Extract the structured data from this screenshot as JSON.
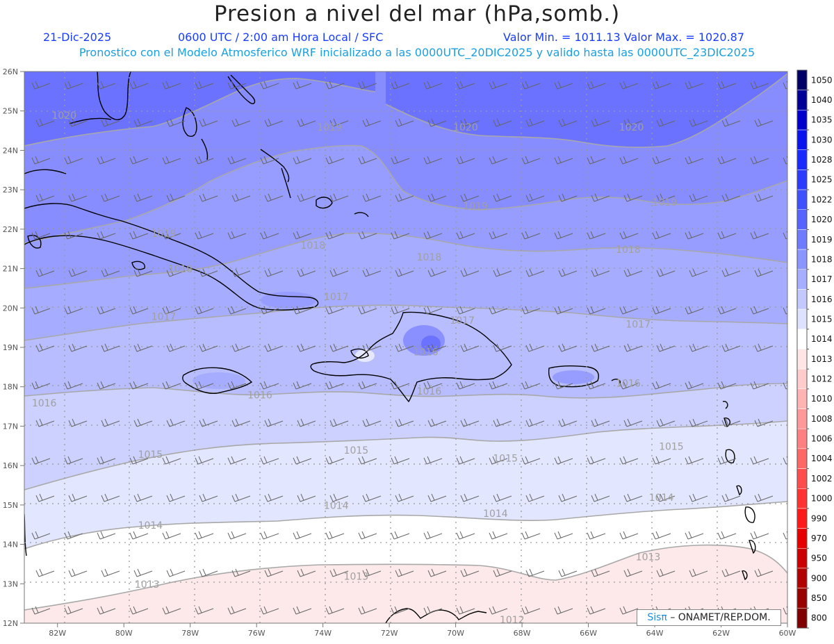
{
  "header": {
    "title": "Presion a nivel del mar (hPa,somb.)",
    "date": "21-Dic-2025",
    "time_info": "0600 UTC / 2:00 am Hora Local / SFC",
    "min_max": "Valor Min. = 1011.13  Valor Max. = 1020.87",
    "model_info": "Pronostico con el Modelo Atmosferico WRF inicializado a las 0000UTC_20DIC2025 y valido hasta las  0000UTC_23DIC2025"
  },
  "map": {
    "lat_labels": [
      "26N",
      "25N",
      "24N",
      "23N",
      "22N",
      "21N",
      "20N",
      "19N",
      "18N",
      "17N",
      "16N",
      "15N",
      "14N",
      "13N",
      "12N"
    ],
    "lon_labels": [
      "82W",
      "80W",
      "78W",
      "76W",
      "74W",
      "72W",
      "70W",
      "68W",
      "66W",
      "64W",
      "62W",
      "60W"
    ],
    "contour_labels": [
      {
        "text": "1020",
        "lon": -81.8,
        "lat": 24.8
      },
      {
        "text": "1019",
        "lon": -73.8,
        "lat": 24.5
      },
      {
        "text": "1020",
        "lon": -69.7,
        "lat": 24.5
      },
      {
        "text": "1020",
        "lon": -64.7,
        "lat": 24.5
      },
      {
        "text": "1019",
        "lon": -69.4,
        "lat": 22.5
      },
      {
        "text": "1019",
        "lon": -63.7,
        "lat": 22.6
      },
      {
        "text": "1019",
        "lon": -78.8,
        "lat": 21.8
      },
      {
        "text": "1018",
        "lon": -74.3,
        "lat": 21.5
      },
      {
        "text": "1018",
        "lon": -70.8,
        "lat": 21.2
      },
      {
        "text": "1018",
        "lon": -64.8,
        "lat": 21.4
      },
      {
        "text": "1018",
        "lon": -78.3,
        "lat": 20.9
      },
      {
        "text": "1017",
        "lon": -73.6,
        "lat": 20.2
      },
      {
        "text": "1017",
        "lon": -78.8,
        "lat": 19.7
      },
      {
        "text": "1017",
        "lon": -69.8,
        "lat": 19.6
      },
      {
        "text": "1017",
        "lon": -64.5,
        "lat": 19.5
      },
      {
        "text": "1016",
        "lon": -70.9,
        "lat": 18.8
      },
      {
        "text": "1016",
        "lon": -75.9,
        "lat": 17.7
      },
      {
        "text": "1016",
        "lon": -70.8,
        "lat": 17.8
      },
      {
        "text": "1016",
        "lon": -64.8,
        "lat": 18.0
      },
      {
        "text": "1016",
        "lon": -82.4,
        "lat": 17.5
      },
      {
        "text": "1015",
        "lon": -79.2,
        "lat": 16.2
      },
      {
        "text": "1015",
        "lon": -73.0,
        "lat": 16.3
      },
      {
        "text": "1015",
        "lon": -68.5,
        "lat": 16.1
      },
      {
        "text": "1015",
        "lon": -63.5,
        "lat": 16.4
      },
      {
        "text": "1014",
        "lon": -73.6,
        "lat": 14.9
      },
      {
        "text": "1014",
        "lon": -68.8,
        "lat": 14.7
      },
      {
        "text": "1014",
        "lon": -63.8,
        "lat": 15.1
      },
      {
        "text": "1014",
        "lon": -79.2,
        "lat": 14.4
      },
      {
        "text": "1013",
        "lon": -64.2,
        "lat": 13.6
      },
      {
        "text": "1013",
        "lon": -73.0,
        "lat": 13.1
      },
      {
        "text": "1013",
        "lon": -79.3,
        "lat": 12.9
      },
      {
        "text": "1012",
        "lon": -68.3,
        "lat": 12.0
      }
    ]
  },
  "colorbar": {
    "labels": [
      "1050",
      "1040",
      "1035",
      "1030",
      "1028",
      "1025",
      "1022",
      "1020",
      "1019",
      "1018",
      "1017",
      "1016",
      "1015",
      "1014",
      "1013",
      "1012",
      "1010",
      "1008",
      "1006",
      "1004",
      "1002",
      "1000",
      "990",
      "970",
      "950",
      "900",
      "850",
      "800"
    ],
    "colors": [
      "#000066",
      "#000099",
      "#0000cc",
      "#0a14ee",
      "#1a2aff",
      "#2b3cff",
      "#3e50ff",
      "#5564ff",
      "#6e7bff",
      "#8a95ff",
      "#a6aeff",
      "#c3c8ff",
      "#dfe2ff",
      "#ffffff",
      "#ffe6e6",
      "#ffcccc",
      "#ffb3b3",
      "#ff9999",
      "#ff8080",
      "#ff6666",
      "#ff4d4d",
      "#ff3333",
      "#ff1a1a",
      "#e60000",
      "#cc0000",
      "#b30000",
      "#990000",
      "#800000"
    ]
  },
  "credit": {
    "brand": "Sisπ",
    "text": "– ONAMET/REP.DOM."
  }
}
